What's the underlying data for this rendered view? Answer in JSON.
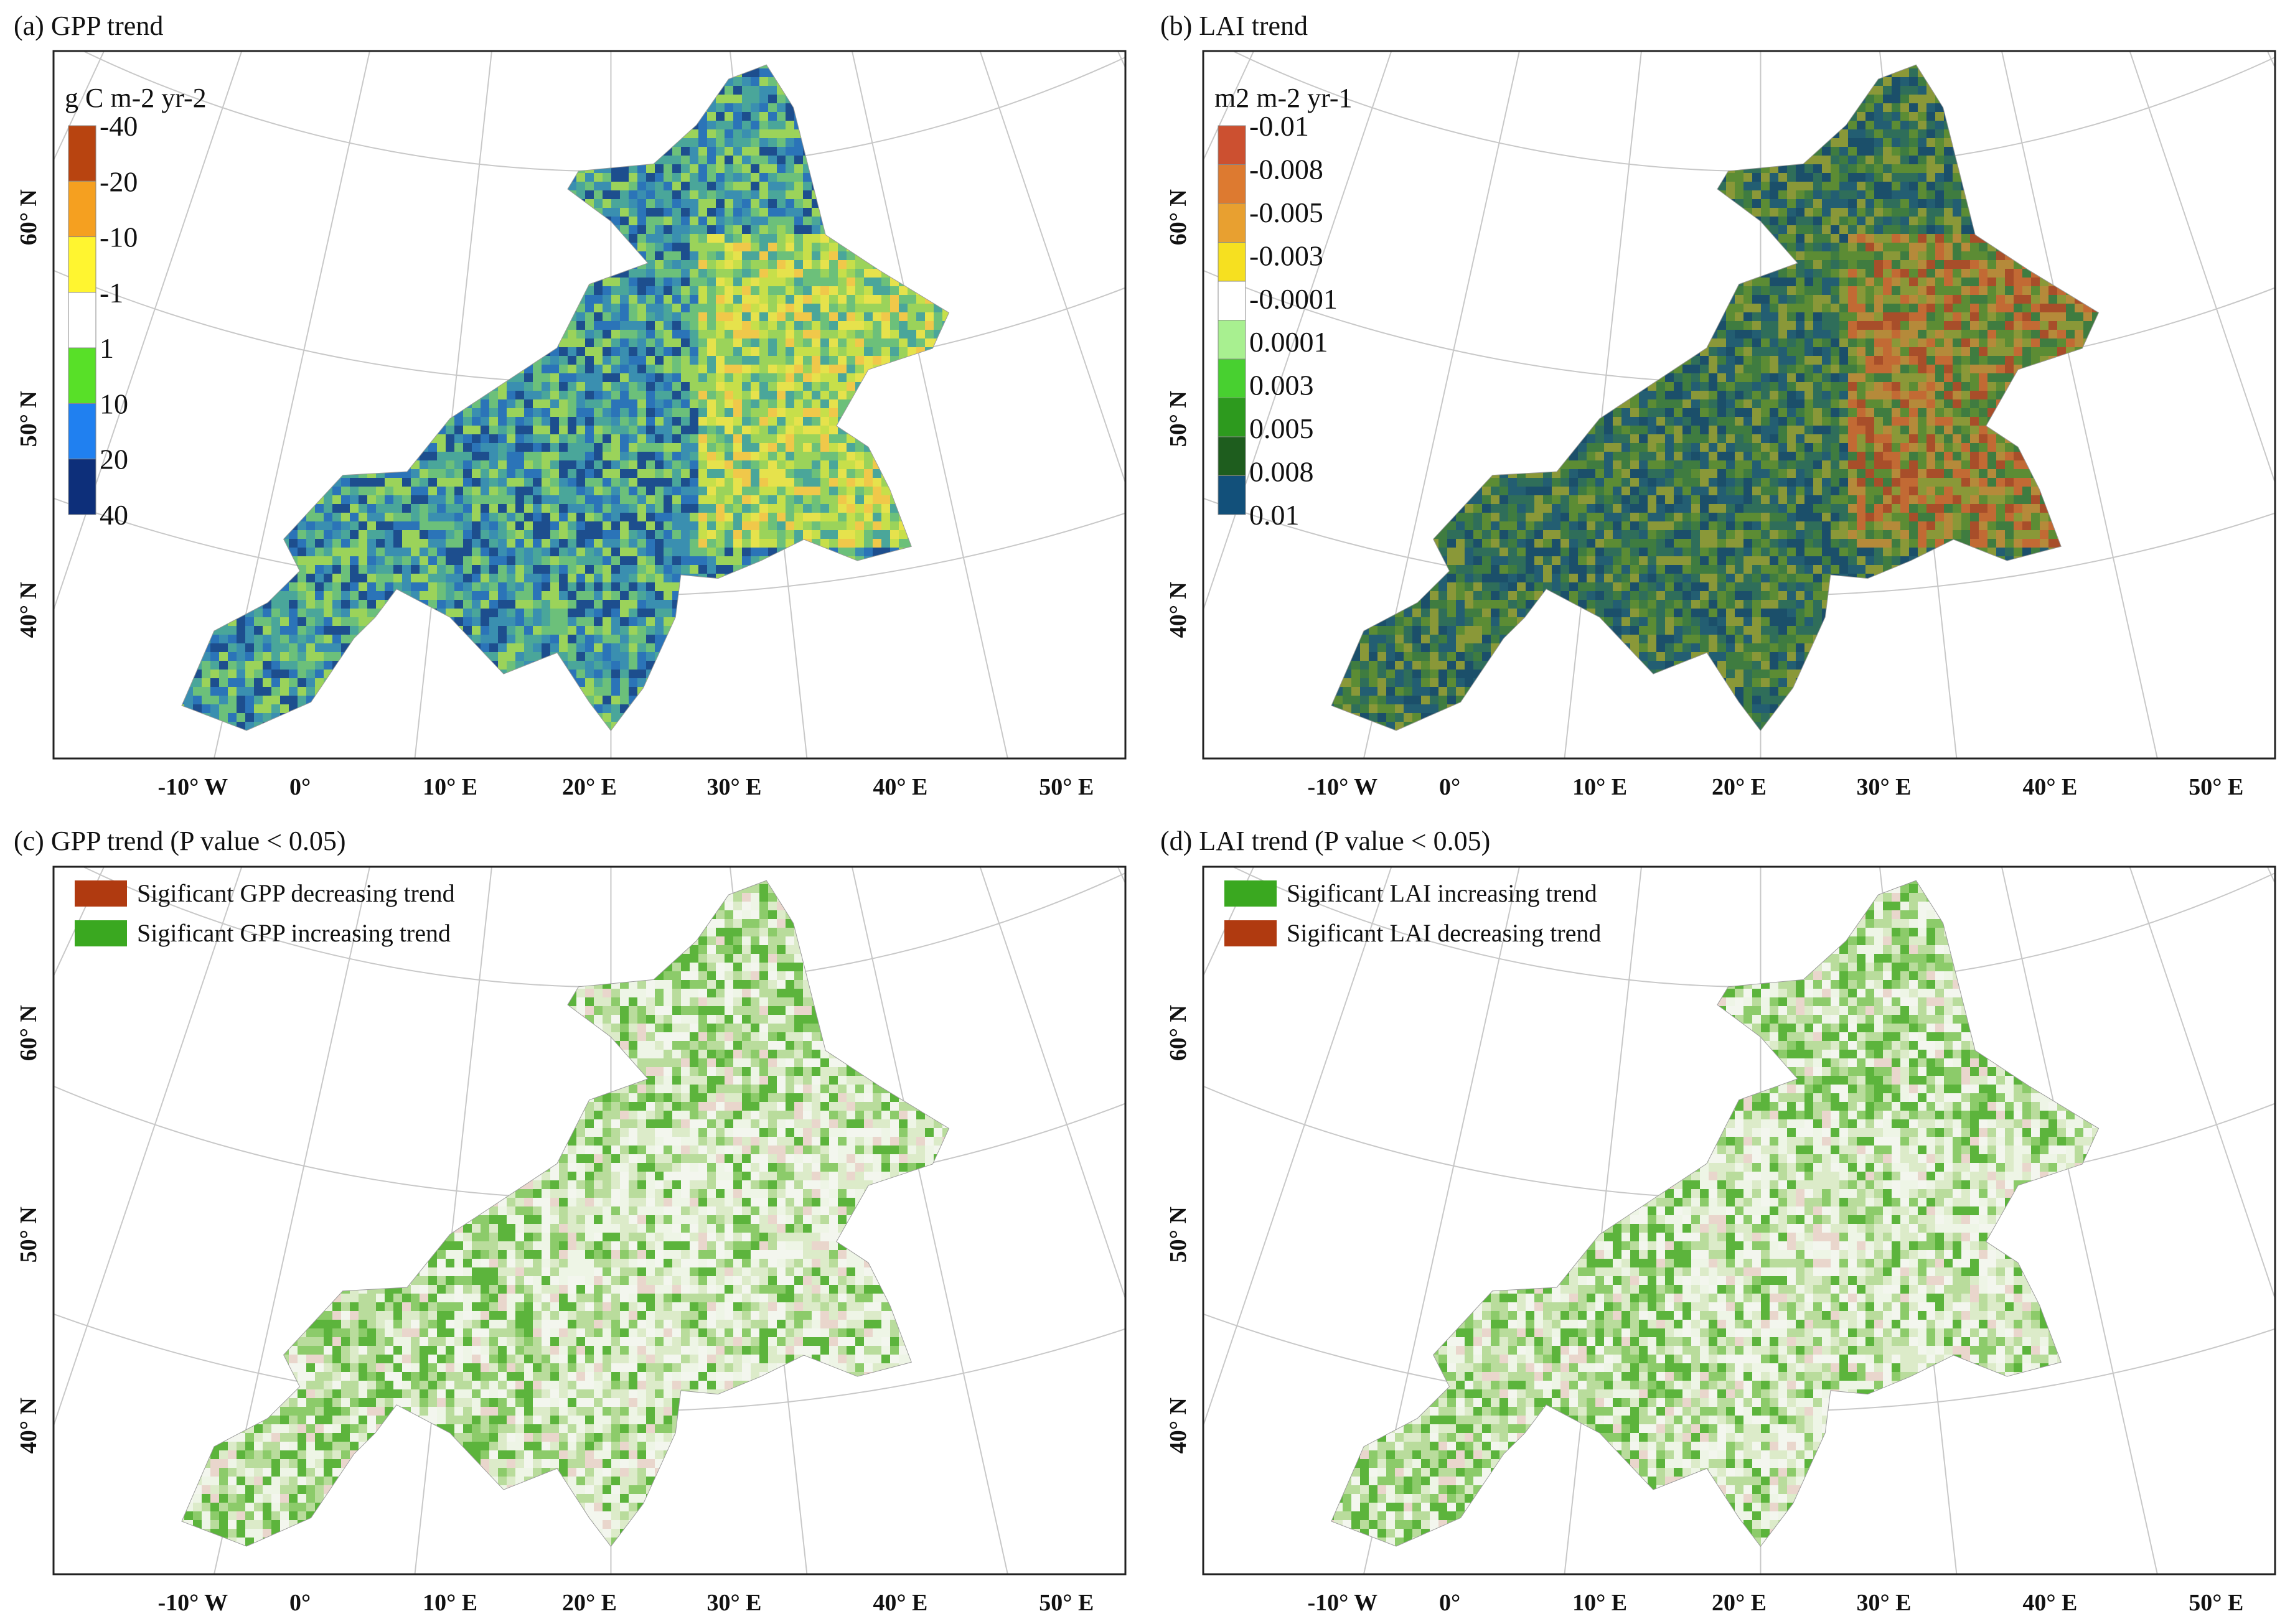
{
  "panels": [
    {
      "id": "a",
      "title": "(a) GPP trend",
      "kind": "continuous",
      "colorbar": {
        "unit": "g C m-2 yr-2",
        "labels": [
          "-40",
          "-20",
          "-10",
          "-1",
          "1",
          "10",
          "20",
          "40"
        ],
        "colors": [
          "#b84410",
          "#f5a020",
          "#fff530",
          "#ffffff",
          "#58e028",
          "#2080f0",
          "#0d2f7a"
        ]
      },
      "palette": [
        "#1d4e8e",
        "#2b74b8",
        "#3a8fb0",
        "#4aa69a",
        "#6cc07a",
        "#9bd35a",
        "#c7df4a",
        "#e6e24c",
        "#f0c84a"
      ]
    },
    {
      "id": "b",
      "title": "(b) LAI trend",
      "kind": "continuous",
      "colorbar": {
        "unit": "m2 m-2 yr-1",
        "labels": [
          "-0.01",
          "-0.008",
          "-0.005",
          "-0.003",
          "-0.0001",
          "0.0001",
          "0.003",
          "0.005",
          "0.008",
          "0.01"
        ],
        "colors": [
          "#cc5030",
          "#dd7a30",
          "#e8a030",
          "#f6e020",
          "#ffffff",
          "#a8f090",
          "#48d030",
          "#2d9a1e",
          "#1e5d1e",
          "#12507a"
        ]
      },
      "palette": [
        "#1b4f6a",
        "#235e72",
        "#2f6e5a",
        "#3f7c40",
        "#5c8c34",
        "#8a9838",
        "#b58a3a",
        "#c26a34",
        "#a84e2a"
      ]
    },
    {
      "id": "c",
      "title": "(c) GPP trend (P value < 0.05)",
      "kind": "significance",
      "legend": [
        {
          "label": "Sigificant GPP decreasing trend",
          "color": "#b03a10"
        },
        {
          "label": "Sigificant GPP increasing trend",
          "color": "#3aa820"
        }
      ],
      "palette": [
        "#f3f6ee",
        "#eef5e6",
        "#dcebc9",
        "#b9dc9c",
        "#8ccb6a",
        "#5cb43c",
        "#e9d6cc"
      ]
    },
    {
      "id": "d",
      "title": "(d) LAI trend (P value < 0.05)",
      "kind": "significance",
      "legend": [
        {
          "label": "Sigificant LAI increasing trend",
          "color": "#3aa820"
        },
        {
          "label": "Sigificant LAI decreasing trend",
          "color": "#b03a10"
        }
      ],
      "palette": [
        "#f3f6ee",
        "#eef5e6",
        "#dcebc9",
        "#b9dc9c",
        "#8ccb6a",
        "#5cb43c",
        "#e9d6cc"
      ]
    }
  ],
  "axis": {
    "lon_labels": [
      "-10° W",
      "0°",
      "10° E",
      "20° E",
      "30° E",
      "40° E",
      "50° E"
    ],
    "lat_labels": [
      "40° N",
      "50° N",
      "60° N"
    ]
  }
}
